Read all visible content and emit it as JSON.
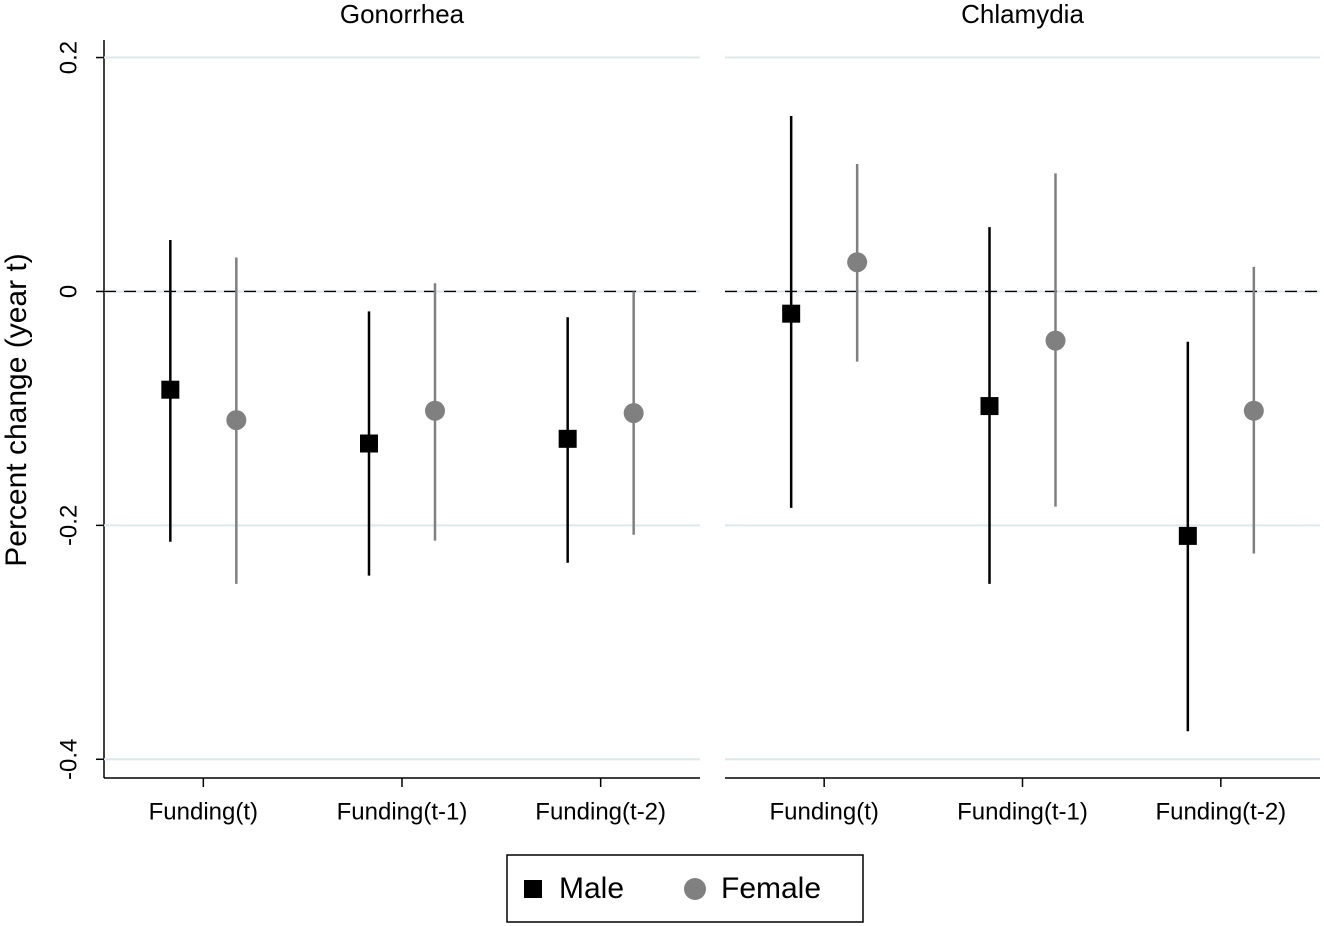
{
  "chart_data": {
    "type": "errorbar",
    "ylabel": "Percent change (year t)",
    "panels": [
      "Gonorrhea",
      "Chlamydia"
    ],
    "categories": [
      "Funding(t)",
      "Funding(t-1)",
      "Funding(t-2)"
    ],
    "ylim": [
      -0.416,
      0.215
    ],
    "yticks": [
      0.2,
      0,
      -0.2,
      -0.4
    ],
    "refline": 0,
    "grid": true,
    "legend": "bottom",
    "series": [
      {
        "name": "Male",
        "color": "#000000",
        "marker": "square",
        "values": [
          [
            -0.084,
            -0.13,
            -0.126
          ],
          [
            -0.019,
            -0.098,
            -0.209
          ]
        ],
        "lower": [
          [
            -0.214,
            -0.243,
            -0.232
          ],
          [
            -0.185,
            -0.25,
            -0.376
          ]
        ],
        "upper": [
          [
            0.044,
            -0.017,
            -0.022
          ],
          [
            0.15,
            0.055,
            -0.043
          ]
        ]
      },
      {
        "name": "Female",
        "color": "#808080",
        "marker": "circle",
        "values": [
          [
            -0.11,
            -0.102,
            -0.104
          ],
          [
            0.025,
            -0.042,
            -0.102
          ]
        ],
        "lower": [
          [
            -0.25,
            -0.213,
            -0.208
          ],
          [
            -0.06,
            -0.184,
            -0.224
          ]
        ],
        "upper": [
          [
            0.029,
            0.007,
            0.0
          ],
          [
            0.109,
            0.101,
            0.021
          ]
        ]
      }
    ]
  }
}
